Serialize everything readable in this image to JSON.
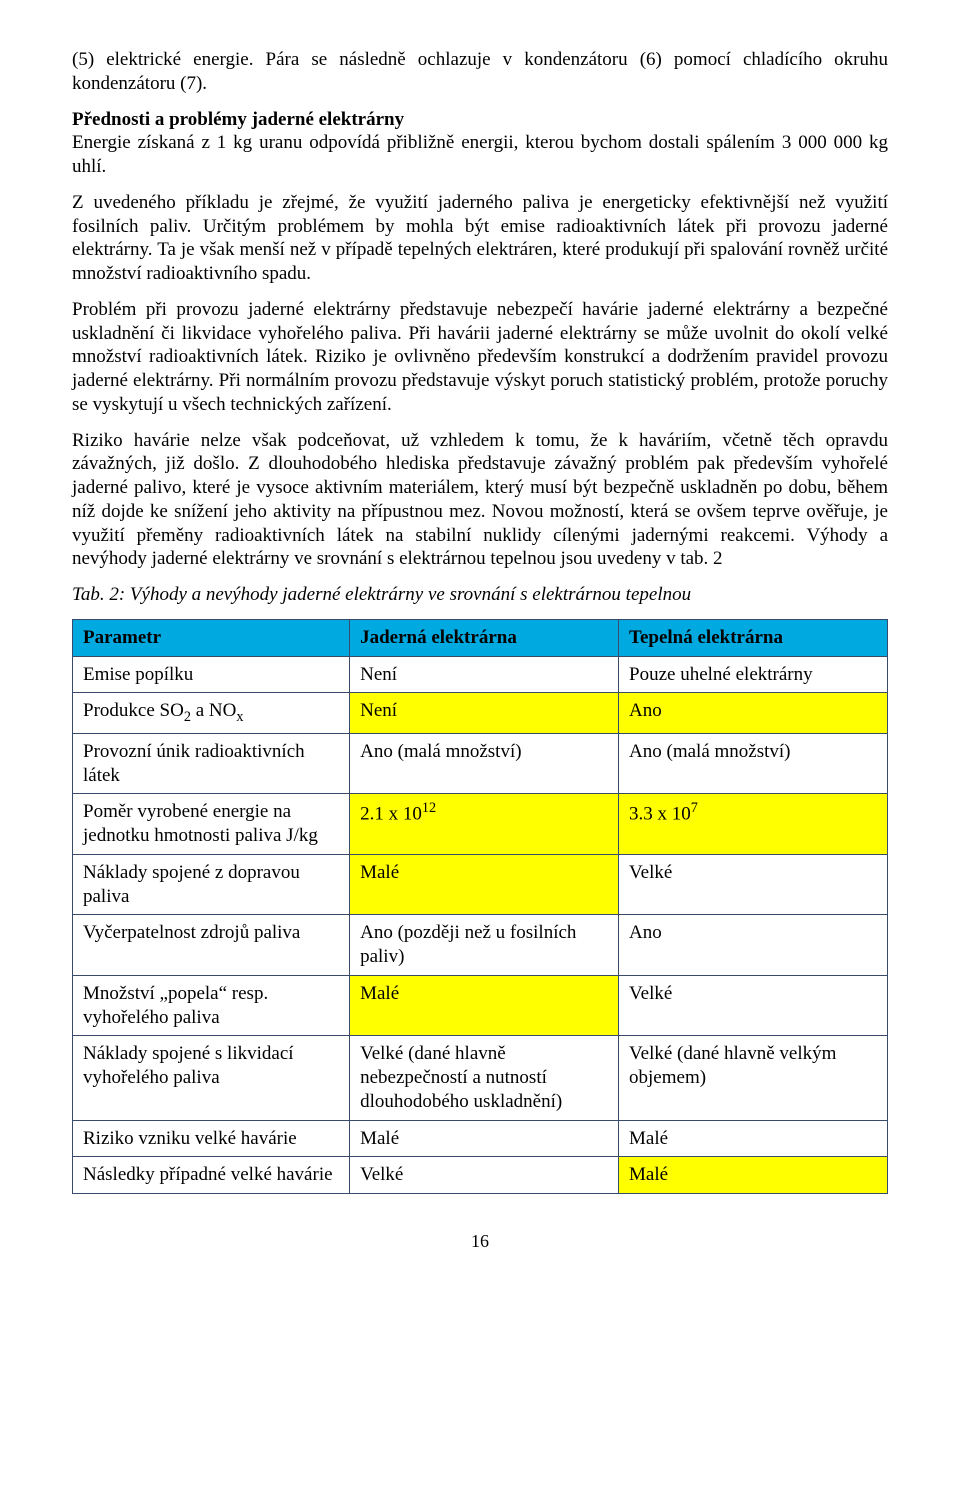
{
  "colors": {
    "header_bg": "#00a9e0",
    "highlight_bg": "#ffff00",
    "border": "#3a4a6a",
    "text": "#000000",
    "background": "#ffffff"
  },
  "paragraphs": {
    "p1": "(5) elektrické energie. Pára se následně ochlazuje v kondenzátoru (6) pomocí chladícího okruhu kondenzátoru (7).",
    "p2_heading": "Přednosti a problémy jaderné elektrárny",
    "p2_body": "Energie získaná z 1 kg uranu odpovídá přibližně energii, kterou bychom dostali spálením 3 000 000 kg uhlí.",
    "p3": "Z uvedeného příkladu je zřejmé, že využití jaderného paliva je energeticky efektivnější než využití fosilních paliv. Určitým problémem by mohla být emise radioaktivních látek při provozu jaderné elektrárny. Ta je však menší než v případě tepelných elektráren, které produkují při spalování rovněž určité množství radioaktivního spadu.",
    "p4": "Problém při provozu jaderné elektrárny představuje nebezpečí havárie jaderné elektrárny a bezpečné uskladnění či likvidace vyhořelého paliva. Při havárii jaderné elektrárny se může uvolnit do okolí velké množství radioaktivních látek. Riziko je ovlivněno především konstrukcí a dodržením pravidel provozu jaderné elektrárny. Při normálním provozu představuje výskyt poruch statistický problém, protože poruchy se vyskytují u všech technických zařízení.",
    "p5": "Riziko havárie nelze však podceňovat, už vzhledem k tomu, že k haváriím, včetně těch opravdu závažných, již došlo. Z dlouhodobého hlediska představuje závažný problém pak především vyhořelé jaderné palivo, které je vysoce aktivním materiálem, který musí být bezpečně uskladněn po dobu, během níž dojde ke snížení jeho aktivity na přípustnou mez. Novou možností, která se ovšem teprve ověřuje, je využití přeměny radioaktivních látek na stabilní nuklidy cílenými jadernými reakcemi. Výhody a nevýhody jaderné elektrárny ve srovnání s elektrárnou tepelnou jsou uvedeny v tab. 2",
    "caption": "Tab. 2: Výhody a nevýhody jaderné elektrárny ve srovnání s elektrárnou tepelnou"
  },
  "table": {
    "columns": [
      "Parametr",
      "Jaderná elektrárna",
      "Tepelná elektrárna"
    ],
    "rows": [
      {
        "label_html": "Emise popílku",
        "c1": "Není",
        "c2": "Pouze uhelné elektrárny",
        "hl": [
          false,
          false,
          false
        ]
      },
      {
        "label_html": "Produkce SO<sub>2</sub> a NO<sub>x</sub>",
        "c1": "Není",
        "c2": "Ano",
        "hl": [
          false,
          true,
          true
        ]
      },
      {
        "label_html": "Provozní únik radioaktivních látek",
        "c1": "Ano (malá množství)",
        "c2": "Ano (malá množství)",
        "hl": [
          false,
          false,
          false
        ]
      },
      {
        "label_html": "Poměr vyrobené energie na jednotku hmotnosti paliva J/kg",
        "c1": "2.1 x 10<sup>12</sup>",
        "c2": "3.3 x 10<sup>7</sup>",
        "hl": [
          false,
          true,
          true
        ],
        "c1_is_html": true,
        "c2_is_html": true
      },
      {
        "label_html": "Náklady spojené z dopravou paliva",
        "c1": "Malé",
        "c2": "Velké",
        "hl": [
          false,
          true,
          false
        ]
      },
      {
        "label_html": "Vyčerpatelnost zdrojů paliva",
        "c1": "Ano (později než u fosilních paliv)",
        "c2": "Ano",
        "hl": [
          false,
          false,
          false
        ]
      },
      {
        "label_html": "Množství „popela“ resp. vyhořelého paliva",
        "c1": "Malé",
        "c2": "Velké",
        "hl": [
          false,
          true,
          false
        ]
      },
      {
        "label_html": "Náklady spojené s likvidací vyhořelého paliva",
        "c1": "Velké (dané hlavně nebezpečností a nutností dlouhodobého uskladnění)",
        "c2": "Velké (dané hlavně velkým objemem)",
        "hl": [
          false,
          false,
          false
        ]
      },
      {
        "label_html": "Riziko vzniku velké havárie",
        "c1": "Malé",
        "c2": "Malé",
        "hl": [
          false,
          false,
          false
        ]
      },
      {
        "label_html": "Následky případné velké havárie",
        "c1": "Velké",
        "c2": "Malé",
        "hl": [
          false,
          false,
          true
        ]
      }
    ]
  },
  "page_number": "16"
}
